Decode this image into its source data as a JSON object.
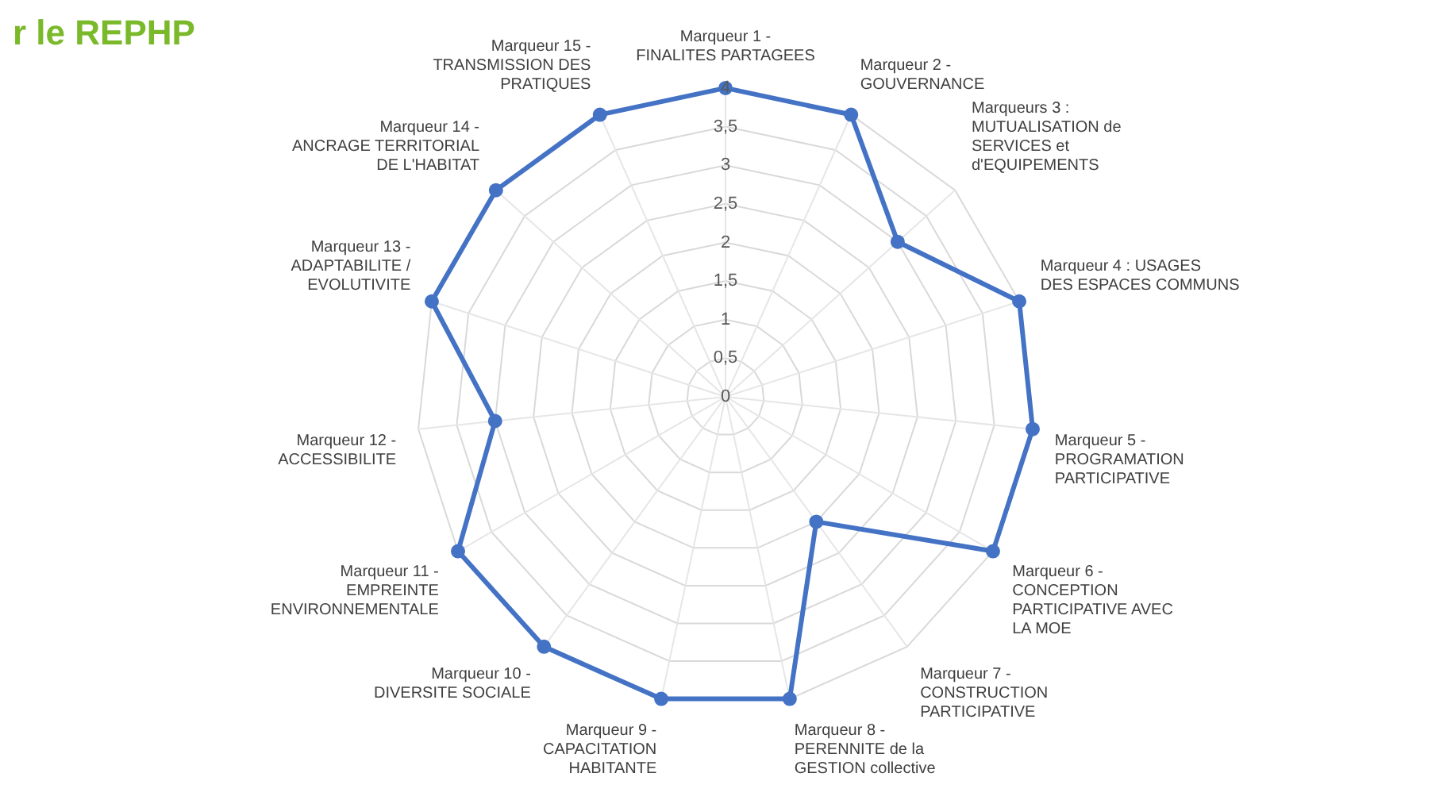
{
  "chart_data": {
    "type": "radar",
    "title": "r le REPHP",
    "categories": [
      "Marqueur 1 - FINALITES PARTAGEES",
      "Marqueur 2 - GOUVERNANCE",
      "Marqueurs 3 : MUTUALISATION de SERVICES et d'EQUIPEMENTS",
      "Marqueur 4 : USAGES DES ESPACES COMMUNS",
      "Marqueur 5 - PROGRAMATION PARTICIPATIVE",
      "Marqueur 6 - CONCEPTION PARTICIPATIVE AVEC LA MOE",
      "Marqueur 7 - CONSTRUCTION PARTICIPATIVE",
      "Marqueur 8 - PERENNITE de la GESTION collective",
      "Marqueur 9 - CAPACITATION HABITANTE",
      "Marqueur 10 - DIVERSITE SOCIALE",
      "Marqueur 11 - EMPREINTE ENVIRONNEMENTALE",
      "Marqueur 12 - ACCESSIBILITE",
      "Marqueur 13 - ADAPTABILITE / EVOLUTIVITE",
      "Marqueur 14 - ANCRAGE TERRITORIAL DE L'HABITAT",
      "Marqueur 15 - TRANSMISSION DES PRATIQUES"
    ],
    "series": [
      {
        "color": "#4472c4",
        "values": [
          4,
          4,
          3,
          4,
          4,
          4,
          2,
          4,
          4,
          4,
          4,
          3,
          4,
          4,
          4
        ]
      }
    ],
    "ylim": [
      0,
      4
    ],
    "yticks": [
      0,
      {
        "value": 0.5,
        "label": "0,5"
      },
      1,
      {
        "value": 1.5,
        "label": "1,5"
      },
      2,
      {
        "value": 2.5,
        "label": "2,5"
      },
      3,
      {
        "value": 3.5,
        "label": "3,5"
      },
      4
    ],
    "grid": true,
    "marker": "circle",
    "line_style": "solid"
  }
}
